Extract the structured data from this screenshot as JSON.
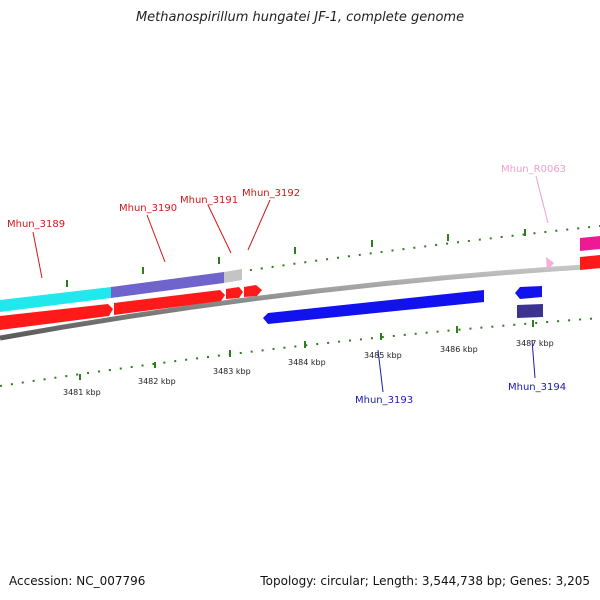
{
  "title": "Methanospirillum hungatei JF-1, complete genome",
  "footer": {
    "accession": "Accession: NC_007796",
    "summary": "Topology: circular; Length: 3,544,738 bp; Genes: 3,205"
  },
  "colors": {
    "backbone": "#8a8a8a",
    "tick": "#2e7d1f",
    "red": "#ff1a1a",
    "cyan": "#22e8ee",
    "slate": "#6f63cc",
    "grey": "#c4c4c4",
    "blue": "#1212ee",
    "navy": "#3a3490",
    "pink": "#f0b0d8",
    "magenta": "#ee1a94"
  },
  "scale": {
    "unit": "kbp",
    "labels": [
      "3481 kbp",
      "3482 kbp",
      "3483 kbp",
      "3484 kbp",
      "3485 kbp",
      "3486 kbp",
      "3487 kbp"
    ]
  },
  "gene_labels": [
    {
      "text": "Mhun_3189",
      "color": "#d01818"
    },
    {
      "text": "Mhun_3190",
      "color": "#d01818"
    },
    {
      "text": "Mhun_3191",
      "color": "#d01818"
    },
    {
      "text": "Mhun_3192",
      "color": "#d01818"
    },
    {
      "text": "Mhun_R0063",
      "color": "#f0a0cc"
    },
    {
      "text": "Mhun_3193",
      "color": "#1a1ab0"
    },
    {
      "text": "Mhun_3194",
      "color": "#1a1ab0"
    }
  ]
}
